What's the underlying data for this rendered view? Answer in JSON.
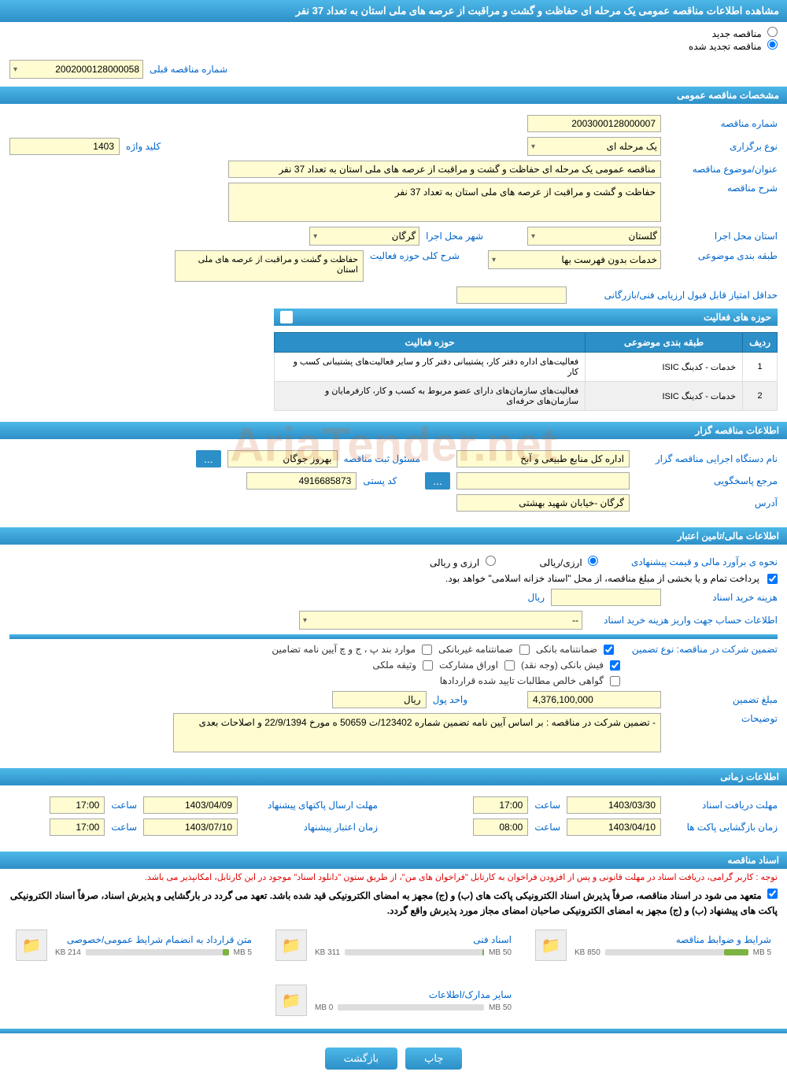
{
  "page_title": "مشاهده اطلاعات مناقصه عمومی یک مرحله ای حفاظت و گشت و مراقبت از عرصه های ملی استان به تعداد 37 نفر",
  "tender_status": {
    "new_label": "مناقصه جدید",
    "renewed_label": "مناقصه تجدید شده"
  },
  "prev_tender": {
    "label": "شماره مناقصه قبلی",
    "value": "2002000128000058"
  },
  "sections": {
    "general": "مشخصات مناقصه عمومی",
    "activities": "حوزه های فعالیت",
    "organizer": "اطلاعات مناقصه گزار",
    "financial": "اطلاعات مالی/تامین اعتبار",
    "timing": "اطلاعات زمانی",
    "documents": "اسناد مناقصه"
  },
  "general": {
    "tender_no_label": "شماره مناقصه",
    "tender_no": "2003000128000007",
    "holding_type_label": "نوع برگزاری",
    "holding_type": "یک مرحله ای",
    "keyword_label": "کلید واژه",
    "keyword": "1403",
    "subject_label": "عنوان/موضوع مناقصه",
    "subject": "مناقصه عمومی یک مرحله ای حفاظت و گشت و مراقبت از عرصه های ملی استان به تعداد 37 نفر",
    "desc_label": "شرح مناقصه",
    "desc": "حفاظت و گشت و مراقبت از عرصه های ملی استان به تعداد 37 نفر",
    "province_label": "استان محل اجرا",
    "province": "گلستان",
    "city_label": "شهر محل اجرا",
    "city": "گرگان",
    "category_label": "طبقه بندی موضوعی",
    "category": "خدمات بدون فهرست بها",
    "activity_desc_label": "شرح کلی حوزه فعالیت",
    "activity_desc": "حفاظت و گشت و مراقبت از عرصه های ملی استان",
    "min_score_label": "حداقل امتیاز قابل قبول ارزیابی فنی/بازرگانی"
  },
  "activity_table": {
    "col_row": "ردیف",
    "col_category": "طبقه بندی موضوعی",
    "col_activity": "حوزه فعالیت",
    "rows": [
      {
        "n": "1",
        "cat": "خدمات - کدینگ ISIC",
        "act": "فعالیت‌های  اداره دفتر کار، پشتیبانی دفتر کار و سایر فعالیت‌های پشتیبانی کسب و کار"
      },
      {
        "n": "2",
        "cat": "خدمات - کدینگ ISIC",
        "act": "فعالیت‌های سازمان‌های دارای عضو مربوط به کسب و کار، کارفرمایان و سازمان‌های حرفه‌ای"
      }
    ]
  },
  "organizer": {
    "exec_label": "نام دستگاه اجرایی مناقصه گزار",
    "exec": "اداره کل منابع طبیعی و آبخ",
    "reg_officer_label": "مسئول ثبت مناقصه",
    "reg_officer": "بهروز جوگان",
    "contact_label": "مرجع پاسخگویی",
    "postal_label": "کد پستی",
    "postal": "4916685873",
    "address_label": "آدرس",
    "address": "گرگان -خیابان شهید بهشتی"
  },
  "financial": {
    "estimate_label": "نحوه ی برآورد مالی و قیمت پیشنهادی",
    "opt_rial": "ارزی/ریالی",
    "opt_currency": "ارزی و ریالی",
    "treasury_note": "پرداخت تمام و یا بخشی از مبلغ مناقصه، از محل \"اسناد خزانه اسلامی\" خواهد بود.",
    "doc_fee_label": "هزینه خرید اسناد",
    "rial_unit": "ریال",
    "account_label": "اطلاعات حساب جهت واریز هزینه خرید اسناد",
    "account_placeholder": "--",
    "guarantee_label": "تضمین شرکت در مناقصه:   نوع تضمین",
    "chk_bank_guarantee": "ضمانتنامه بانکی",
    "chk_nonbank": "ضمانتنامه غیربانکی",
    "chk_cases": "موارد بند پ ، ج و چ آیین نامه تضامین",
    "chk_bank_receipt": "فیش بانکی (وجه نقد)",
    "chk_securities": "اوراق مشارکت",
    "chk_property": "وثیقه ملکی",
    "chk_certificate": "گواهی خالص مطالبات تایید شده قراردادها",
    "amount_label": "مبلغ تضمین",
    "amount": "4,376,100,000",
    "unit_label": "واحد پول",
    "unit": "ریال",
    "remarks_label": "توضیحات",
    "remarks": "- تضمین شرکت در مناقصه : بر اساس آیین نامه تضمین شماره 123402/ت 50659 ه مورخ 22/9/1394 و اصلاحات بعدی"
  },
  "timing": {
    "doc_deadline_label": "مهلت دریافت اسناد",
    "doc_deadline_date": "1403/03/30",
    "time_label": "ساعت",
    "doc_deadline_time": "17:00",
    "proposal_deadline_label": "مهلت ارسال پاکتهای پیشنهاد",
    "proposal_deadline_date": "1403/04/09",
    "proposal_deadline_time": "17:00",
    "opening_label": "زمان بازگشایی پاکت ها",
    "opening_date": "1403/04/10",
    "opening_time": "08:00",
    "validity_label": "زمان اعتبار پیشنهاد",
    "validity_date": "1403/07/10",
    "validity_time": "17:00"
  },
  "notes": {
    "red": "توجه : کاربر گرامی، دریافت اسناد در مهلت قانونی و پس از افزودن فراخوان به کارتابل \"فراخوان های من\"، از طریق ستون \"دانلود اسناد\" موجود در این کارتابل، امکانپذیر می باشد.",
    "black": "متعهد می شود در اسناد مناقصه، صرفاً پذیرش اسناد الکترونیکی پاکت های (ب) و (ج) مجهز به امضای الکترونیکی قید شده باشد. تعهد می گردد در بارگشایی و پذیرش اسناد، صرفاً اسناد الکترونیکی پاکت های پیشنهاد (ب) و (ج) مجهز به امضای الکترونیکی صاحبان امضای مجاز مورد پذیرش واقع گردد."
  },
  "documents": [
    {
      "title": "شرایط و ضوابط مناقصه",
      "size": "850 KB",
      "max": "5 MB",
      "pct": 17
    },
    {
      "title": "اسناد فنی",
      "size": "311 KB",
      "max": "50 MB",
      "pct": 1
    },
    {
      "title": "متن قرارداد به انضمام شرایط عمومی/خصوصی",
      "size": "214 KB",
      "max": "5 MB",
      "pct": 4
    },
    {
      "title": "سایر مدارک/اطلاعات",
      "size": "0 MB",
      "max": "50 MB",
      "pct": 0
    }
  ],
  "buttons": {
    "print": "چاپ",
    "back": "بازگشت",
    "more": "..."
  },
  "colors": {
    "header_grad_top": "#4db8e8",
    "header_grad_bottom": "#2d8fc7",
    "field_bg": "#fefcd0",
    "link": "#0066cc"
  }
}
